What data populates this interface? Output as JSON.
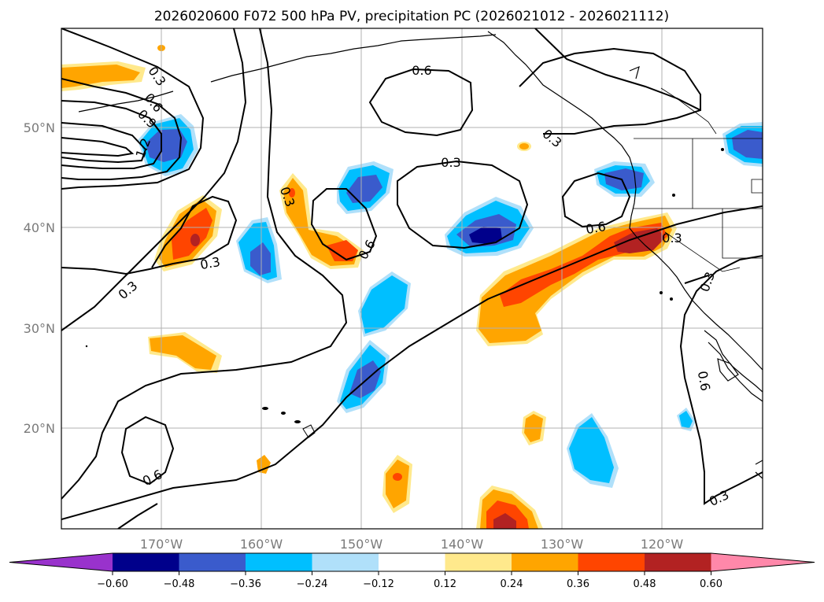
{
  "title": "2026020600 F072 500 hPa PV, precipitation PC (2026021012 - 2026021112)",
  "map": {
    "lat_labels": [
      "50°N",
      "40°N",
      "30°N",
      "20°N"
    ],
    "lon_labels": [
      "170°W",
      "160°W",
      "150°W",
      "140°W",
      "130°W",
      "120°W"
    ],
    "contour_labels": [
      "0.3",
      "0.6",
      "0.9",
      "1.2",
      "0.6",
      "0.3",
      "0.3",
      "0.6",
      "0.3",
      "0.3",
      "0.3",
      "0.6",
      "0.6",
      "0.3",
      "0.3",
      "0.6",
      "0.3",
      "0.6",
      "0.3"
    ]
  },
  "colorbar": {
    "ticks": [
      "−0.60",
      "−0.48",
      "−0.36",
      "−0.24",
      "−0.12",
      "0.12",
      "0.24",
      "0.36",
      "0.48",
      "0.60"
    ],
    "colors": [
      "#9932CC",
      "#00008B",
      "#3A5BCC",
      "#00BFFF",
      "#B0E0FA",
      "#FFFFFF",
      "#FFE98C",
      "#FFA500",
      "#FF4500",
      "#B22222",
      "#FF88AA"
    ]
  },
  "colors": {
    "land_outline": "#000000",
    "grid": "#b0b0b0",
    "pv_contour": "#000000"
  }
}
